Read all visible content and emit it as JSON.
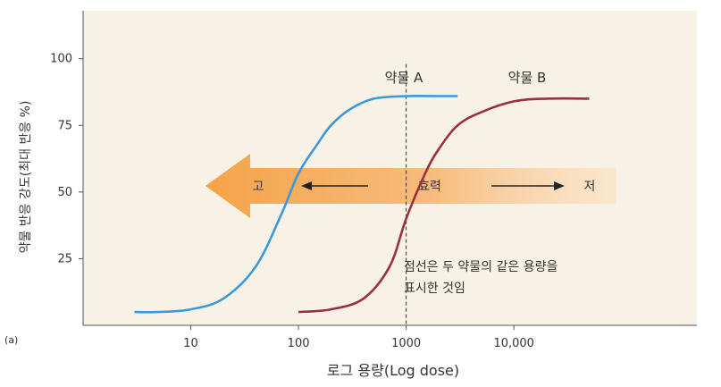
{
  "chart_data": {
    "type": "line",
    "panel_label": "(a)",
    "xlabel": "로그 용량(Log dose)",
    "ylabel": "약물 반응 강도(최대 반응 %)",
    "x_scale": "log",
    "xlim": [
      1.0,
      500000
    ],
    "ylim": [
      0,
      118
    ],
    "x_ticks": [
      10,
      100,
      1000,
      10000
    ],
    "x_tick_labels": [
      "10",
      "100",
      "1000",
      "10,000"
    ],
    "y_ticks": [
      25,
      50,
      75,
      100
    ],
    "y_tick_labels": [
      "25",
      "50",
      "75",
      "100"
    ],
    "series": [
      {
        "name": "약물 A",
        "color": "#3a9ad9",
        "x": [
          3,
          5,
          10,
          20,
          40,
          70,
          100,
          150,
          200,
          300,
          500,
          1000,
          2000,
          3000
        ],
        "y": [
          5,
          5,
          6,
          10,
          22,
          42,
          57,
          68,
          75,
          81,
          85,
          86,
          86,
          86
        ]
      },
      {
        "name": "약물 B",
        "color": "#9b2f3e",
        "x": [
          100,
          200,
          400,
          700,
          1000,
          1500,
          2000,
          3000,
          5000,
          10000,
          20000,
          50000
        ],
        "y": [
          5,
          6,
          10,
          22,
          40,
          57,
          66,
          75,
          80,
          84,
          85,
          85
        ]
      }
    ],
    "annotations": {
      "dashed_line_x": 1000,
      "arrow_left_label": "고",
      "arrow_center_label": "효력",
      "arrow_right_label": "저",
      "note_line1": "점선은 두 약물의 같은 용량을",
      "note_line2": "표시한 것임"
    },
    "colors": {
      "plot_background": "#f8f1e5",
      "arrow": "#f5a347",
      "axis": "#555555",
      "dashed": "#333333"
    }
  }
}
